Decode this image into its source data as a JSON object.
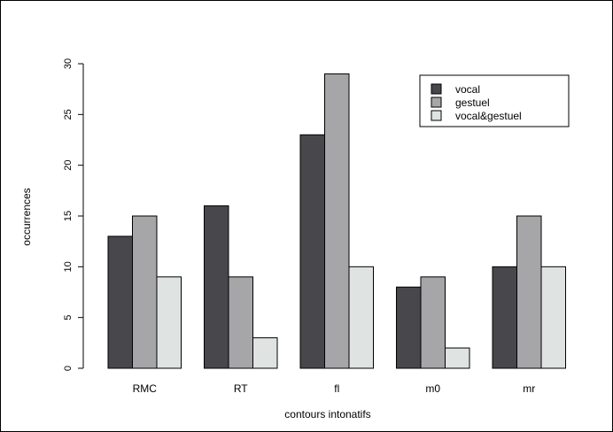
{
  "chart_data": {
    "type": "bar",
    "title": "",
    "xlabel": "contours intonatifs",
    "ylabel": "occurrences",
    "categories": [
      "RMC",
      "RT",
      "fl",
      "m0",
      "mr"
    ],
    "series": [
      {
        "name": "vocal",
        "values": [
          13,
          16,
          23,
          8,
          10
        ],
        "color": "#48474b"
      },
      {
        "name": "gestuel",
        "values": [
          15,
          9,
          29,
          9,
          15
        ],
        "color": "#a6a6a8"
      },
      {
        "name": "vocal&gestuel",
        "values": [
          9,
          3,
          10,
          2,
          10
        ],
        "color": "#dfe3e1"
      }
    ],
    "ylim": [
      0,
      30
    ],
    "yticks": [
      0,
      5,
      10,
      15,
      20,
      25,
      30
    ],
    "grid": false,
    "legend_position": "top-right"
  }
}
